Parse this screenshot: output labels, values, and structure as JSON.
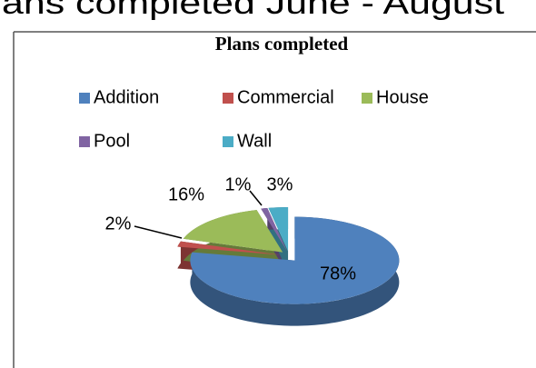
{
  "heading": "ans completed June - August",
  "chart_data": {
    "type": "pie3d",
    "title": "Plans completed",
    "categories": [
      "Addition",
      "Commercial",
      "House",
      "Pool",
      "Wall"
    ],
    "values": [
      78,
      2,
      16,
      1,
      3
    ],
    "value_labels": [
      "78%",
      "2%",
      "16%",
      "1%",
      "3%"
    ],
    "colors": [
      "#4F81BD",
      "#C0504D",
      "#9BBB59",
      "#8064A2",
      "#4BACC6"
    ],
    "legend": "top"
  }
}
